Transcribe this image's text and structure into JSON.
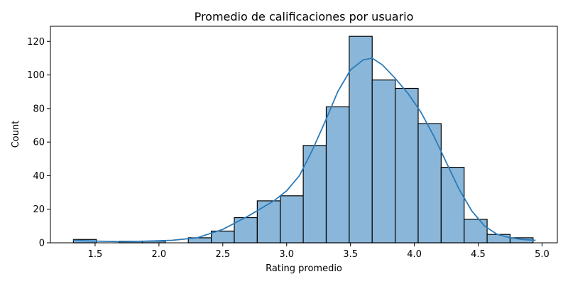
{
  "chart_data": {
    "type": "bar",
    "title": "Promedio de calificaciones por usuario",
    "xlabel": "Rating promedio",
    "ylabel": "Count",
    "xlim": [
      1.15,
      5.12
    ],
    "ylim": [
      0,
      129
    ],
    "x_ticks": [
      "1.5",
      "2.0",
      "2.5",
      "3.0",
      "3.5",
      "4.0",
      "4.5",
      "5.0"
    ],
    "y_ticks": [
      "0",
      "20",
      "40",
      "60",
      "80",
      "100",
      "120"
    ],
    "bin_edges": [
      1.33,
      1.51,
      1.69,
      1.87,
      2.05,
      2.23,
      2.41,
      2.59,
      2.77,
      2.95,
      3.13,
      3.31,
      3.49,
      3.67,
      3.85,
      4.03,
      4.21,
      4.39,
      4.57,
      4.75,
      4.93
    ],
    "values": [
      2,
      0,
      1,
      1,
      0,
      3,
      7,
      15,
      25,
      28,
      58,
      81,
      123,
      97,
      92,
      71,
      45,
      14,
      5,
      3
    ],
    "kde": {
      "x": [
        1.33,
        1.5,
        1.7,
        1.9,
        2.1,
        2.3,
        2.5,
        2.7,
        2.9,
        3.0,
        3.1,
        3.2,
        3.3,
        3.4,
        3.5,
        3.6,
        3.67,
        3.75,
        3.85,
        3.95,
        4.05,
        4.15,
        4.25,
        4.35,
        4.45,
        4.55,
        4.65,
        4.75,
        4.85,
        4.95
      ],
      "y": [
        1.5,
        1.0,
        0.7,
        1.0,
        1.5,
        3.0,
        8.0,
        16,
        25,
        31,
        40,
        55,
        72,
        90,
        103,
        109,
        110,
        106,
        98,
        89,
        78,
        64,
        48,
        32,
        19,
        10,
        5,
        3,
        2,
        1.5
      ]
    },
    "bar_color": "#8ab7d9",
    "line_color": "#2b7bba"
  }
}
